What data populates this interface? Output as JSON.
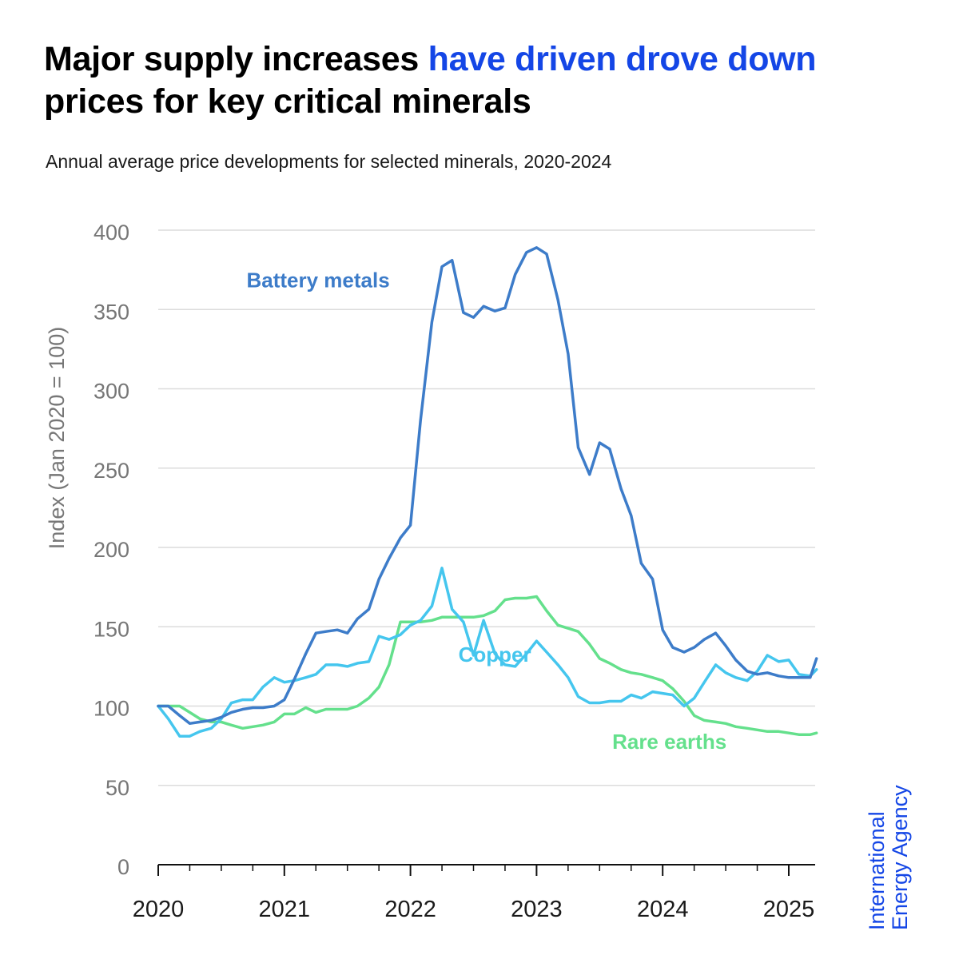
{
  "header": {
    "title_part1": "Major supply increases ",
    "title_highlight": "have driven drove down",
    "title_part2": " prices for key critical minerals",
    "subtitle": "Annual average price developments for selected minerals, 2020-2024"
  },
  "brand": {
    "line1": "International",
    "line2": "Energy Agency"
  },
  "chart_data": {
    "type": "line",
    "ylabel": "Index (Jan 2020 = 100)",
    "xlabel": "",
    "ylim": [
      0,
      400
    ],
    "xlim": [
      2020,
      2025.2
    ],
    "yticks": [
      0,
      50,
      100,
      150,
      200,
      250,
      300,
      350,
      400
    ],
    "xticks": [
      2020,
      2021,
      2022,
      2023,
      2024,
      2025
    ],
    "grid": "horizontal",
    "legend": "inline labels",
    "series": [
      {
        "name": "Battery metals",
        "color": "#3d7cc9",
        "label_at": [
          2020.7,
          364
        ],
        "points": [
          [
            2020,
            100
          ],
          [
            2020.08,
            100
          ],
          [
            2020.17,
            94
          ],
          [
            2020.25,
            89
          ],
          [
            2020.33,
            90
          ],
          [
            2020.42,
            91
          ],
          [
            2020.5,
            93
          ],
          [
            2020.58,
            96
          ],
          [
            2020.67,
            98
          ],
          [
            2020.75,
            99
          ],
          [
            2020.83,
            99
          ],
          [
            2020.92,
            100
          ],
          [
            2021,
            104
          ],
          [
            2021.08,
            117
          ],
          [
            2021.17,
            133
          ],
          [
            2021.25,
            146
          ],
          [
            2021.33,
            147
          ],
          [
            2021.42,
            148
          ],
          [
            2021.5,
            146
          ],
          [
            2021.58,
            155
          ],
          [
            2021.67,
            161
          ],
          [
            2021.75,
            180
          ],
          [
            2021.83,
            193
          ],
          [
            2021.92,
            206
          ],
          [
            2022,
            214
          ],
          [
            2022.08,
            280
          ],
          [
            2022.17,
            342
          ],
          [
            2022.25,
            377
          ],
          [
            2022.33,
            381
          ],
          [
            2022.42,
            348
          ],
          [
            2022.5,
            345
          ],
          [
            2022.58,
            352
          ],
          [
            2022.67,
            349
          ],
          [
            2022.75,
            351
          ],
          [
            2022.83,
            372
          ],
          [
            2022.92,
            386
          ],
          [
            2023,
            389
          ],
          [
            2023.08,
            385
          ],
          [
            2023.17,
            356
          ],
          [
            2023.25,
            322
          ],
          [
            2023.33,
            263
          ],
          [
            2023.42,
            246
          ],
          [
            2023.5,
            266
          ],
          [
            2023.58,
            262
          ],
          [
            2023.67,
            237
          ],
          [
            2023.75,
            220
          ],
          [
            2023.83,
            190
          ],
          [
            2023.92,
            180
          ],
          [
            2024,
            148
          ],
          [
            2024.08,
            137
          ],
          [
            2024.17,
            134
          ],
          [
            2024.25,
            137
          ],
          [
            2024.33,
            142
          ],
          [
            2024.42,
            146
          ],
          [
            2024.5,
            138
          ],
          [
            2024.58,
            129
          ],
          [
            2024.67,
            122
          ],
          [
            2024.75,
            120
          ],
          [
            2024.83,
            121
          ],
          [
            2024.92,
            119
          ],
          [
            2025,
            118
          ],
          [
            2025.08,
            118
          ],
          [
            2025.17,
            118
          ],
          [
            2025.22,
            130
          ]
        ]
      },
      {
        "name": "Copper",
        "color": "#45c6ee",
        "label_at": [
          2022.38,
          128
        ],
        "points": [
          [
            2020,
            100
          ],
          [
            2020.08,
            92
          ],
          [
            2020.17,
            81
          ],
          [
            2020.25,
            81
          ],
          [
            2020.33,
            84
          ],
          [
            2020.42,
            86
          ],
          [
            2020.5,
            92
          ],
          [
            2020.58,
            102
          ],
          [
            2020.67,
            104
          ],
          [
            2020.75,
            104
          ],
          [
            2020.83,
            112
          ],
          [
            2020.92,
            118
          ],
          [
            2021,
            115
          ],
          [
            2021.08,
            116
          ],
          [
            2021.17,
            118
          ],
          [
            2021.25,
            120
          ],
          [
            2021.33,
            126
          ],
          [
            2021.42,
            126
          ],
          [
            2021.5,
            125
          ],
          [
            2021.58,
            127
          ],
          [
            2021.67,
            128
          ],
          [
            2021.75,
            144
          ],
          [
            2021.83,
            142
          ],
          [
            2021.92,
            145
          ],
          [
            2022,
            151
          ],
          [
            2022.08,
            154
          ],
          [
            2022.17,
            163
          ],
          [
            2022.25,
            187
          ],
          [
            2022.33,
            161
          ],
          [
            2022.42,
            153
          ],
          [
            2022.5,
            132
          ],
          [
            2022.58,
            154
          ],
          [
            2022.67,
            133
          ],
          [
            2022.75,
            126
          ],
          [
            2022.83,
            125
          ],
          [
            2022.92,
            133
          ],
          [
            2023,
            141
          ],
          [
            2023.08,
            134
          ],
          [
            2023.17,
            126
          ],
          [
            2023.25,
            118
          ],
          [
            2023.33,
            106
          ],
          [
            2023.42,
            102
          ],
          [
            2023.5,
            102
          ],
          [
            2023.58,
            103
          ],
          [
            2023.67,
            103
          ],
          [
            2023.75,
            107
          ],
          [
            2023.83,
            105
          ],
          [
            2023.92,
            109
          ],
          [
            2024,
            108
          ],
          [
            2024.08,
            107
          ],
          [
            2024.17,
            100
          ],
          [
            2024.25,
            105
          ],
          [
            2024.33,
            115
          ],
          [
            2024.42,
            126
          ],
          [
            2024.5,
            121
          ],
          [
            2024.58,
            118
          ],
          [
            2024.67,
            116
          ],
          [
            2024.75,
            122
          ],
          [
            2024.83,
            132
          ],
          [
            2024.92,
            128
          ],
          [
            2025,
            129
          ],
          [
            2025.08,
            120
          ],
          [
            2025.17,
            119
          ],
          [
            2025.22,
            123
          ]
        ]
      },
      {
        "name": "Rare earths",
        "color": "#64e08c",
        "label_at": [
          2023.6,
          73
        ],
        "points": [
          [
            2020,
            100
          ],
          [
            2020.08,
            100
          ],
          [
            2020.17,
            100
          ],
          [
            2020.25,
            96
          ],
          [
            2020.33,
            92
          ],
          [
            2020.42,
            90
          ],
          [
            2020.5,
            90
          ],
          [
            2020.58,
            88
          ],
          [
            2020.67,
            86
          ],
          [
            2020.75,
            87
          ],
          [
            2020.83,
            88
          ],
          [
            2020.92,
            90
          ],
          [
            2021,
            95
          ],
          [
            2021.08,
            95
          ],
          [
            2021.17,
            99
          ],
          [
            2021.25,
            96
          ],
          [
            2021.33,
            98
          ],
          [
            2021.42,
            98
          ],
          [
            2021.5,
            98
          ],
          [
            2021.58,
            100
          ],
          [
            2021.67,
            105
          ],
          [
            2021.75,
            112
          ],
          [
            2021.83,
            126
          ],
          [
            2021.92,
            153
          ],
          [
            2022,
            153
          ],
          [
            2022.08,
            153
          ],
          [
            2022.17,
            154
          ],
          [
            2022.25,
            156
          ],
          [
            2022.33,
            156
          ],
          [
            2022.42,
            156
          ],
          [
            2022.5,
            156
          ],
          [
            2022.58,
            157
          ],
          [
            2022.67,
            160
          ],
          [
            2022.75,
            167
          ],
          [
            2022.83,
            168
          ],
          [
            2022.92,
            168
          ],
          [
            2023,
            169
          ],
          [
            2023.08,
            160
          ],
          [
            2023.17,
            151
          ],
          [
            2023.25,
            149
          ],
          [
            2023.33,
            147
          ],
          [
            2023.42,
            139
          ],
          [
            2023.5,
            130
          ],
          [
            2023.58,
            127
          ],
          [
            2023.67,
            123
          ],
          [
            2023.75,
            121
          ],
          [
            2023.83,
            120
          ],
          [
            2023.92,
            118
          ],
          [
            2024,
            116
          ],
          [
            2024.08,
            111
          ],
          [
            2024.17,
            103
          ],
          [
            2024.25,
            94
          ],
          [
            2024.33,
            91
          ],
          [
            2024.42,
            90
          ],
          [
            2024.5,
            89
          ],
          [
            2024.58,
            87
          ],
          [
            2024.67,
            86
          ],
          [
            2024.75,
            85
          ],
          [
            2024.83,
            84
          ],
          [
            2024.92,
            84
          ],
          [
            2025,
            83
          ],
          [
            2025.08,
            82
          ],
          [
            2025.17,
            82
          ],
          [
            2025.22,
            83
          ]
        ]
      }
    ]
  }
}
